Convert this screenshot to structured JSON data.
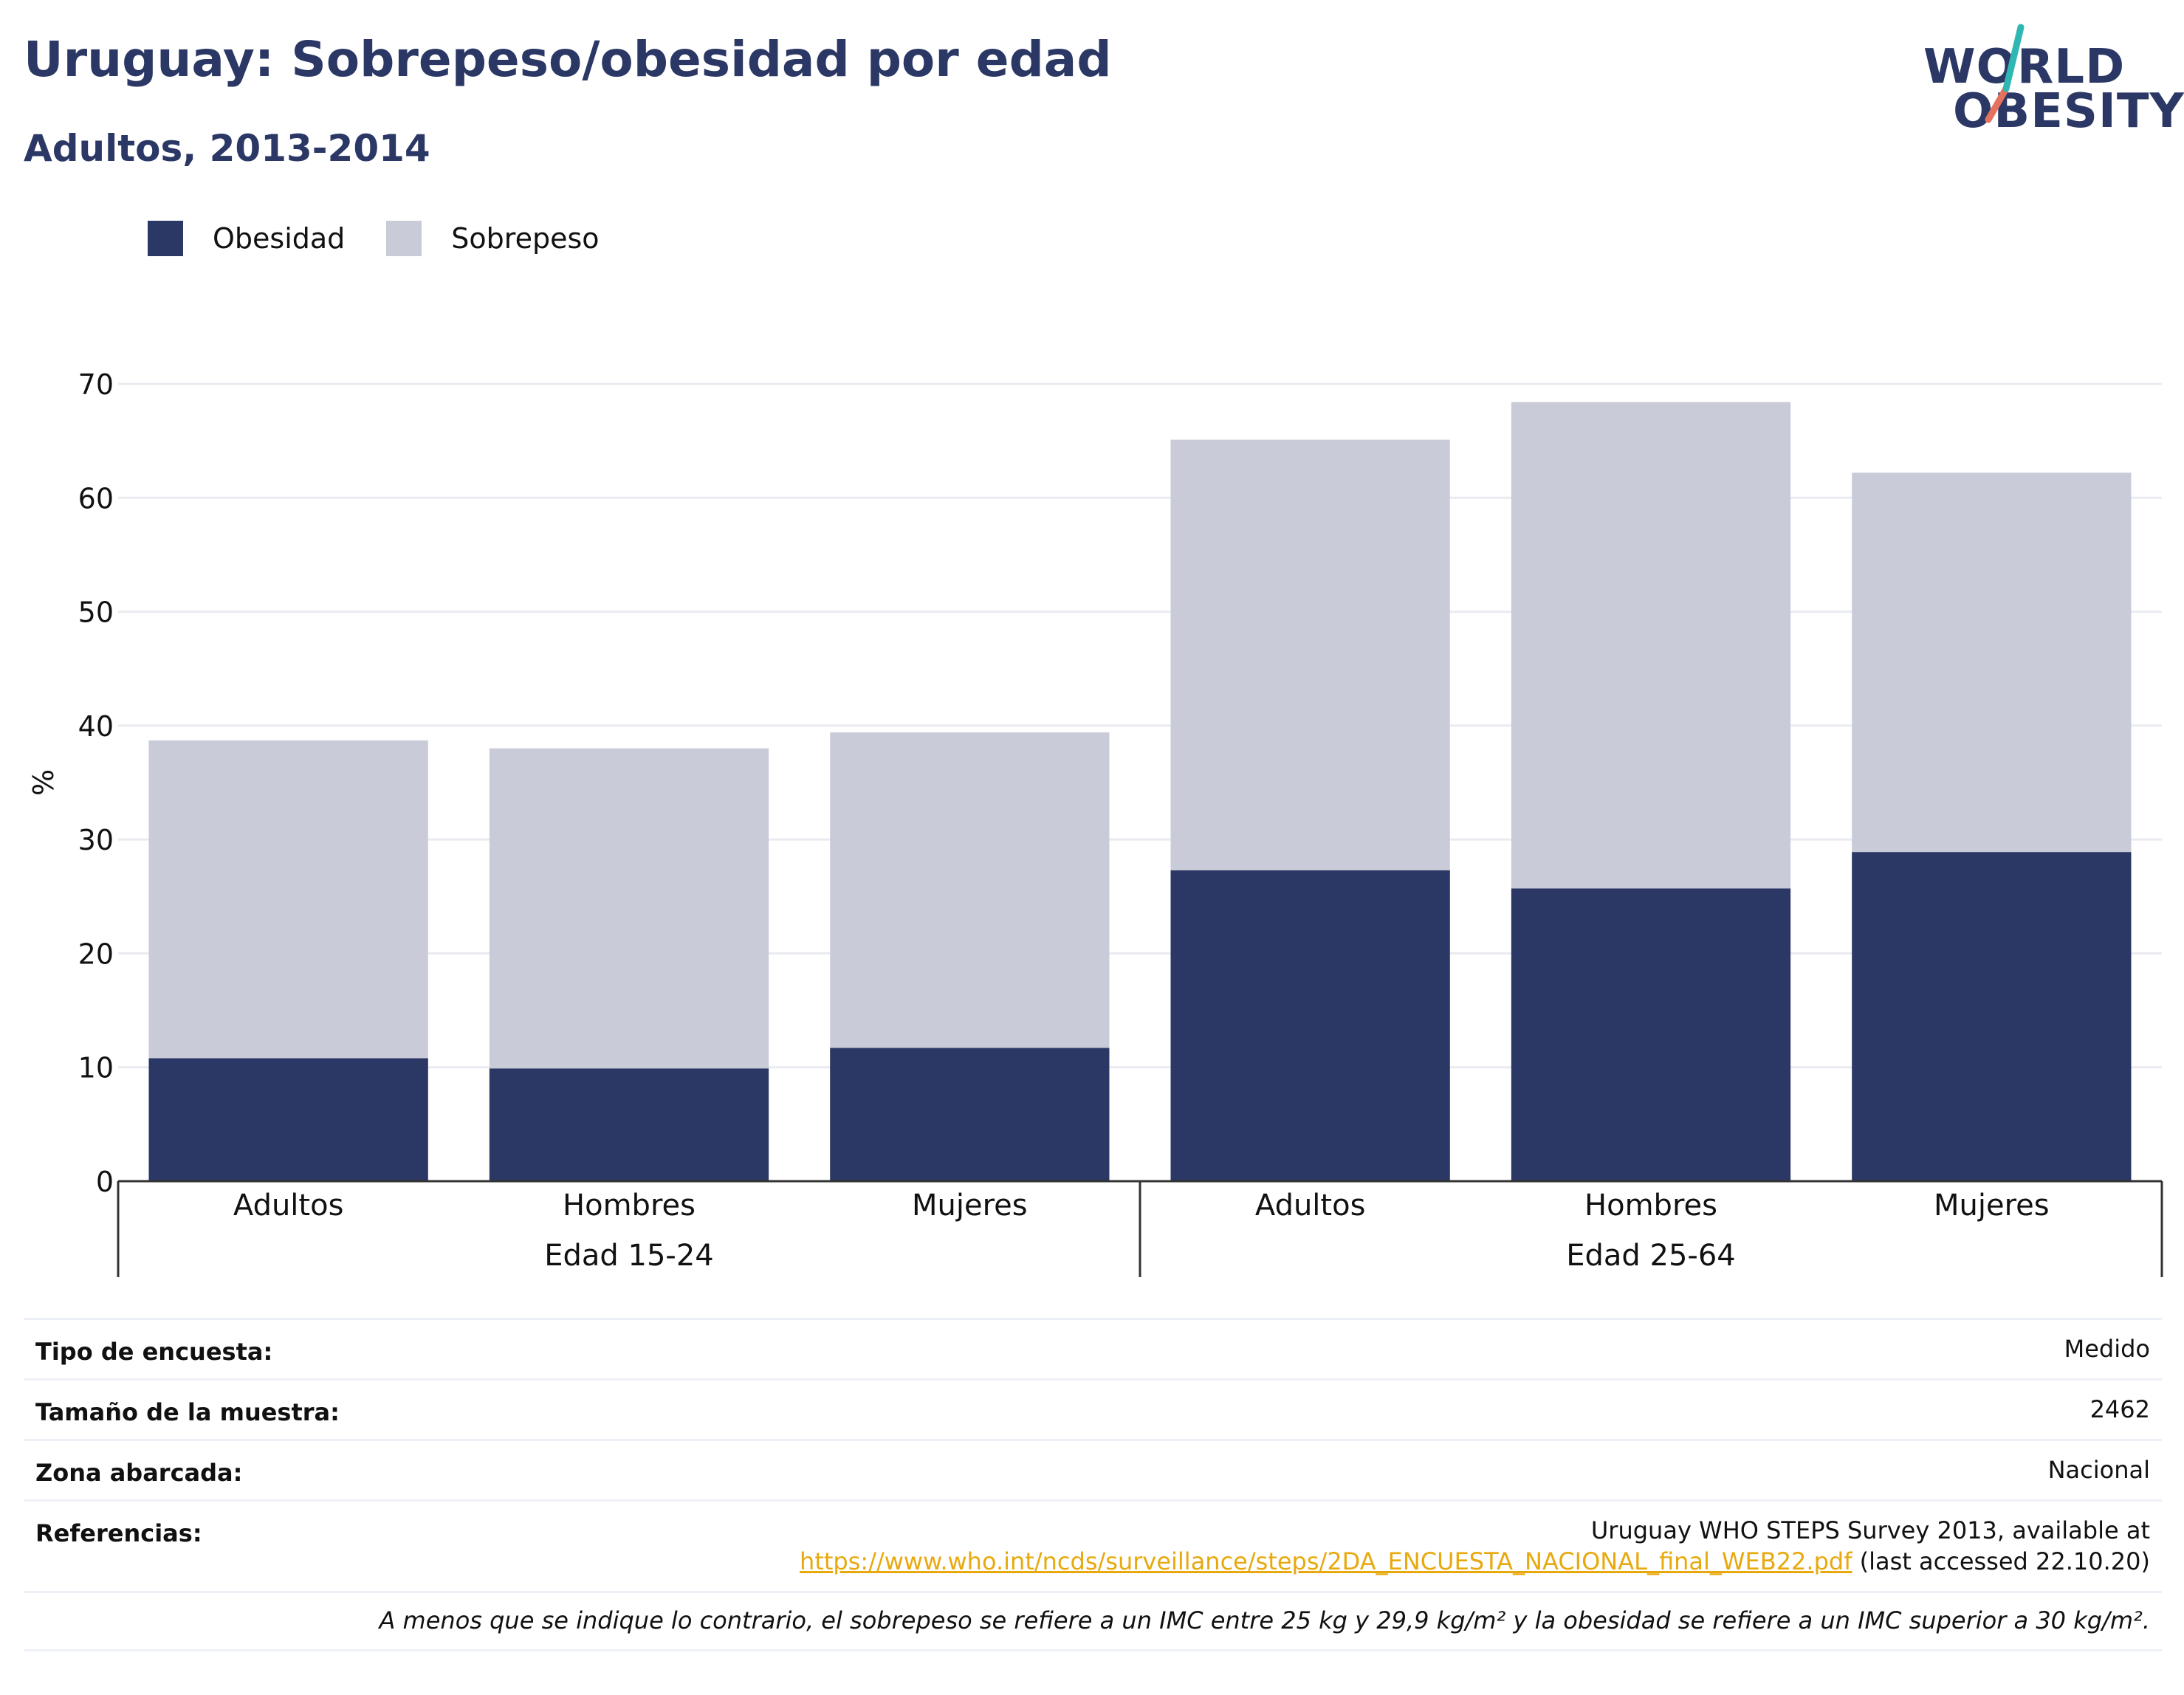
{
  "header": {
    "title": "Uruguay: Sobrepeso/obesidad por edad",
    "subtitle": "Adultos, 2013-2014"
  },
  "logo": {
    "line1": "WORLD",
    "line2": "OBESITY"
  },
  "legend": [
    {
      "label": "Obesidad",
      "color": "#2b3764"
    },
    {
      "label": "Sobrepeso",
      "color": "#c9ccd8"
    }
  ],
  "chart_data": {
    "type": "bar",
    "stacked": true,
    "ylabel": "%",
    "ylim": [
      0,
      70
    ],
    "yticks": [
      0,
      10,
      20,
      30,
      40,
      50,
      60,
      70
    ],
    "grid": true,
    "legend_position": "top-left",
    "groups": [
      {
        "name": "Edad 15-24",
        "categories": [
          "Adultos",
          "Hombres",
          "Mujeres"
        ]
      },
      {
        "name": "Edad 25-64",
        "categories": [
          "Adultos",
          "Hombres",
          "Mujeres"
        ]
      }
    ],
    "categories": [
      "Adultos",
      "Hombres",
      "Mujeres",
      "Adultos",
      "Hombres",
      "Mujeres"
    ],
    "series": [
      {
        "name": "Obesidad",
        "color": "#2b3764",
        "values": [
          10.8,
          9.9,
          11.7,
          27.3,
          25.7,
          28.9
        ]
      },
      {
        "name": "Sobrepeso",
        "color": "#c9ccd8",
        "values": [
          27.9,
          28.1,
          27.7,
          37.8,
          42.7,
          33.3
        ]
      }
    ]
  },
  "info": {
    "survey_type_label": "Tipo de encuesta:",
    "survey_type_value": "Medido",
    "sample_size_label": "Tamaño de la muestra:",
    "sample_size_value": "2462",
    "area_label": "Zona abarcada:",
    "area_value": "Nacional",
    "references_label": "Referencias:",
    "references_text": "Uruguay WHO STEPS Survey 2013, available at",
    "references_link": "https://www.who.int/ncds/surveillance/steps/2DA_ENCUESTA_NACIONAL_final_WEB22.pdf",
    "references_suffix": " (last accessed 22.10.20)",
    "note": "A menos que se indique lo contrario, el sobrepeso se refiere a un IMC entre 25 kg y 29,9 kg/m² y la obesidad se refiere a un IMC superior a 30 kg/m²."
  }
}
